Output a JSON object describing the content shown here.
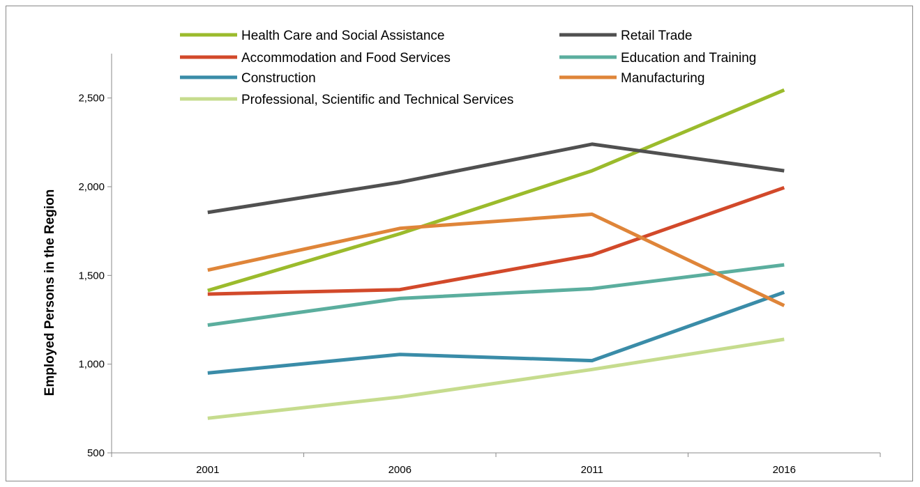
{
  "chart_data": {
    "type": "line",
    "title": "",
    "xlabel": "",
    "ylabel": "Employed Persons in the Region",
    "x": [
      "2001",
      "2006",
      "2011",
      "2016"
    ],
    "ylim": [
      500,
      2750
    ],
    "yticks": [
      500,
      1000,
      1500,
      2000,
      2500
    ],
    "ytick_labels": [
      "500",
      "1,000",
      "1,500",
      "2,000",
      "2,500"
    ],
    "grid": false,
    "legend_position": "top",
    "series": [
      {
        "name": "Health Care and Social Assistance",
        "color": "#9bbb2c",
        "values": [
          1415,
          1735,
          2090,
          2545
        ]
      },
      {
        "name": "Retail Trade",
        "color": "#505050",
        "values": [
          1855,
          2025,
          2240,
          2090
        ]
      },
      {
        "name": "Accommodation and Food Services",
        "color": "#d2492a",
        "values": [
          1395,
          1420,
          1615,
          1995
        ]
      },
      {
        "name": "Education and Training",
        "color": "#5bae9e",
        "values": [
          1220,
          1370,
          1425,
          1560
        ]
      },
      {
        "name": "Construction",
        "color": "#3a8ca8",
        "values": [
          950,
          1055,
          1020,
          1405
        ]
      },
      {
        "name": "Manufacturing",
        "color": "#df8539",
        "values": [
          1530,
          1765,
          1845,
          1330
        ]
      },
      {
        "name": "Professional, Scientific and Technical Services",
        "color": "#c6dc8e",
        "values": [
          695,
          815,
          970,
          1140
        ]
      }
    ]
  }
}
